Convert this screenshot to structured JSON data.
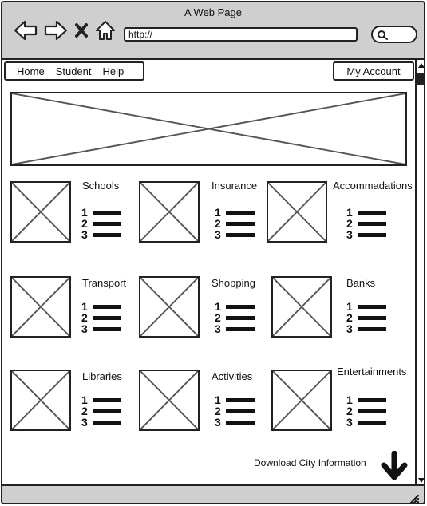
{
  "window": {
    "title": "A Web Page"
  },
  "browser": {
    "url": "http://",
    "icons": [
      "back-arrow-icon",
      "forward-arrow-icon",
      "close-x-icon",
      "home-icon",
      "search-icon"
    ]
  },
  "nav": {
    "items": [
      {
        "label": "Home"
      },
      {
        "label": "Student"
      },
      {
        "label": "Help"
      }
    ],
    "account": "My Account"
  },
  "categories": [
    {
      "label": "Schools"
    },
    {
      "label": "Insurance"
    },
    {
      "label": "Accommadations"
    },
    {
      "label": "Transport"
    },
    {
      "label": "Shopping"
    },
    {
      "label": "Banks"
    },
    {
      "label": "Libraries"
    },
    {
      "label": "Activities"
    },
    {
      "label": "Entertainments"
    }
  ],
  "list_icon_numbers": [
    "1",
    "2",
    "3"
  ],
  "footer": {
    "download_label": "Download City Information"
  }
}
